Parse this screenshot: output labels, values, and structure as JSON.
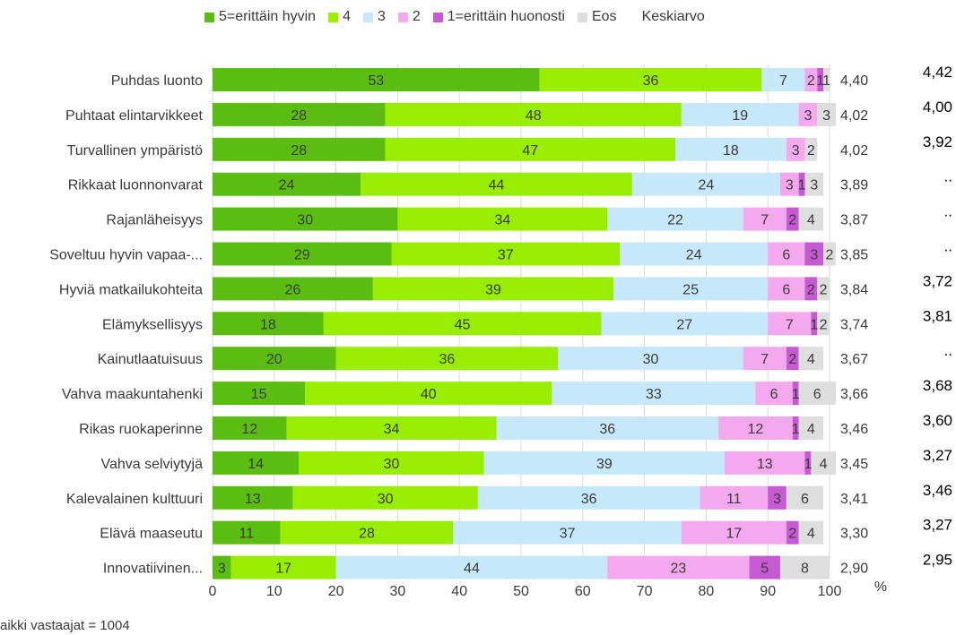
{
  "chart_data": {
    "type": "bar",
    "orientation": "horizontal",
    "stacked": true,
    "categories": [
      "Puhdas luonto",
      "Puhtaat elintarvikkeet",
      "Turvallinen ympäristö",
      "Rikkaat luonnonvarat",
      "Rajanläheisyys",
      "Soveltuu hyvin vapaa-...",
      "Hyviä matkailukohteita",
      "Elämyksellisyys",
      "Kainutlaatuisuus",
      "Vahva maakuntahenki",
      "Rikas ruokaperinne",
      "Vahva selviytyjä",
      "Kalevalainen kulttuuri",
      "Elävä maaseutu",
      "Innovatiivinen..."
    ],
    "series": [
      {
        "name": "5=erittäin hyvin",
        "color": "#5bbd0f",
        "values": [
          53,
          28,
          28,
          24,
          30,
          29,
          26,
          18,
          20,
          15,
          12,
          14,
          13,
          11,
          3
        ]
      },
      {
        "name": "4",
        "color": "#99ee00",
        "values": [
          36,
          48,
          47,
          44,
          34,
          37,
          39,
          45,
          36,
          40,
          34,
          30,
          30,
          28,
          17
        ]
      },
      {
        "name": "3",
        "color": "#c6e8fa",
        "values": [
          7,
          19,
          18,
          24,
          22,
          24,
          25,
          27,
          30,
          33,
          36,
          39,
          36,
          37,
          44
        ]
      },
      {
        "name": "2",
        "color": "#f4a8ee",
        "values": [
          2,
          3,
          3,
          3,
          7,
          6,
          6,
          7,
          7,
          6,
          12,
          13,
          11,
          17,
          23
        ]
      },
      {
        "name": "1=erittäin huonosti",
        "color": "#c55ad2",
        "values": [
          1,
          0,
          0,
          1,
          2,
          3,
          2,
          1,
          2,
          1,
          1,
          1,
          3,
          2,
          5
        ]
      },
      {
        "name": "Eos",
        "color": "#dedede",
        "values": [
          1,
          3,
          2,
          3,
          4,
          2,
          2,
          2,
          4,
          6,
          4,
          4,
          6,
          4,
          8
        ]
      }
    ],
    "segment_labels": [
      [
        "53",
        "36",
        "7",
        "2",
        "1",
        "1"
      ],
      [
        "28",
        "48",
        "19",
        "3",
        "",
        "3"
      ],
      [
        "28",
        "47",
        "18",
        "3",
        "",
        "2"
      ],
      [
        "24",
        "44",
        "24",
        "3",
        "1",
        "3"
      ],
      [
        "30",
        "34",
        "22",
        "7",
        "2",
        "4"
      ],
      [
        "29",
        "37",
        "24",
        "6",
        "3",
        "2"
      ],
      [
        "26",
        "39",
        "25",
        "6",
        "2",
        "2"
      ],
      [
        "18",
        "45",
        "27",
        "7",
        "1",
        "2"
      ],
      [
        "20",
        "36",
        "30",
        "7",
        "2",
        "4"
      ],
      [
        "15",
        "40",
        "33",
        "6",
        "1",
        "6"
      ],
      [
        "12",
        "34",
        "36",
        "12",
        "1",
        "4"
      ],
      [
        "14",
        "30",
        "39",
        "13",
        "1",
        "4"
      ],
      [
        "13",
        "30",
        "36",
        "11",
        "3",
        "6"
      ],
      [
        "11",
        "28",
        "37",
        "17",
        "2",
        "4"
      ],
      [
        "3",
        "17",
        "44",
        "23",
        "5",
        "8"
      ]
    ],
    "keskiarvo_label": "Keskiarvo",
    "keskiarvo": [
      "4,40",
      "4,02",
      "4,02",
      "3,89",
      "3,87",
      "3,85",
      "3,84",
      "3,74",
      "3,67",
      "3,66",
      "3,46",
      "3,45",
      "3,41",
      "3,30",
      "2,90"
    ],
    "comparison": [
      "4,42",
      "4,00",
      "3,92",
      "..",
      "..",
      "..",
      "3,72",
      "3,81",
      "..",
      "3,68",
      "3,60",
      "3,27",
      "3,46",
      "3,27",
      "2,95"
    ],
    "xlim": [
      0,
      100
    ],
    "xticks": [
      "0",
      "10",
      "20",
      "30",
      "40",
      "50",
      "60",
      "70",
      "80",
      "90",
      "100"
    ],
    "xunit": "%",
    "grid": true,
    "legend_position": "top"
  },
  "footnote": "aikki vastaajat =  1004"
}
